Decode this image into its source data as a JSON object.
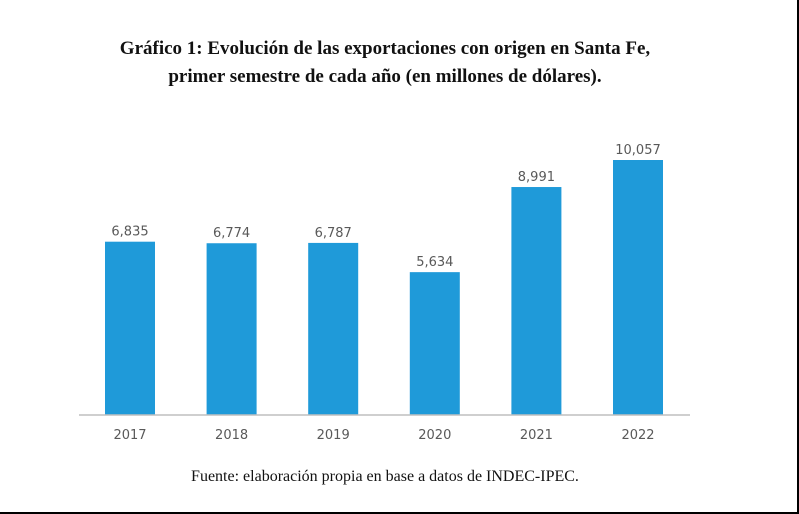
{
  "title_line1": "Gráfico 1: Evolución de las exportaciones con origen en Santa Fe,",
  "title_line2": "primer semestre de cada año (en millones de dólares).",
  "source": "Fuente: elaboración propia en base a datos de INDEC-IPEC.",
  "colors": {
    "bar": "#1f9ad9",
    "axis": "#bfbfbf",
    "label": "#595959"
  },
  "chart_data": {
    "type": "bar",
    "categories": [
      "2017",
      "2018",
      "2019",
      "2020",
      "2021",
      "2022"
    ],
    "values": [
      6835,
      6774,
      6787,
      5634,
      8991,
      10057
    ],
    "value_labels": [
      "6,835",
      "6,774",
      "6,787",
      "5,634",
      "8,991",
      "10,057"
    ],
    "title": "Gráfico 1: Evolución de las exportaciones con origen en Santa Fe, primer semestre de cada año (en millones de dólares).",
    "xlabel": "",
    "ylabel": "",
    "ylim": [
      0,
      10057
    ],
    "grid": false,
    "legend": "none"
  }
}
